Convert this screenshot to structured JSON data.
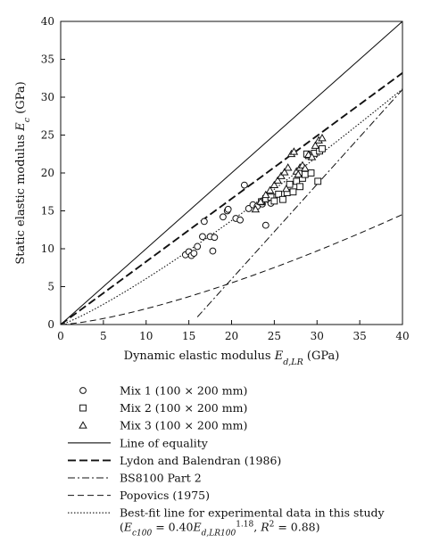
{
  "chart_data": {
    "type": "scatter",
    "title": "",
    "xlabel_text": "Dynamic elastic modulus ",
    "xlabel_var": "E",
    "xlabel_sub": "d,LR",
    "xlabel_unit": " (GPa)",
    "ylabel_text": "Static elastic modulus ",
    "ylabel_var": "E",
    "ylabel_sub": "c",
    "ylabel_unit": " (GPa)",
    "xlim": [
      0,
      40
    ],
    "ylim": [
      0,
      40
    ],
    "xticks": [
      "0",
      "5",
      "10",
      "15",
      "20",
      "25",
      "30",
      "35",
      "40"
    ],
    "yticks": [
      "0",
      "5",
      "10",
      "15",
      "20",
      "25",
      "30",
      "35",
      "40"
    ],
    "grid": false,
    "legend_position": "below",
    "scatter_series": [
      {
        "name": "Mix 1 (100 × 200 mm)",
        "marker": "circle",
        "points": [
          [
            14.6,
            9.2
          ],
          [
            15.0,
            9.6
          ],
          [
            15.3,
            9.1
          ],
          [
            15.6,
            9.4
          ],
          [
            16.0,
            10.3
          ],
          [
            16.6,
            11.6
          ],
          [
            16.8,
            13.6
          ],
          [
            17.5,
            11.6
          ],
          [
            17.8,
            9.7
          ],
          [
            18.0,
            11.5
          ],
          [
            19.0,
            14.2
          ],
          [
            19.5,
            15.0
          ],
          [
            19.6,
            15.2
          ],
          [
            20.5,
            14.0
          ],
          [
            21.0,
            13.8
          ],
          [
            21.5,
            18.4
          ],
          [
            22.0,
            15.3
          ],
          [
            22.5,
            15.8
          ],
          [
            23.0,
            15.6
          ],
          [
            23.6,
            15.9
          ],
          [
            24.0,
            13.1
          ],
          [
            24.3,
            16.5
          ],
          [
            24.6,
            16.0
          ],
          [
            25.0,
            16.8
          ]
        ]
      },
      {
        "name": "Mix 2 (100 × 200 mm)",
        "marker": "square",
        "points": [
          [
            23.5,
            16.2
          ],
          [
            24.0,
            16.6
          ],
          [
            24.6,
            16.8
          ],
          [
            25.0,
            16.3
          ],
          [
            25.5,
            17.2
          ],
          [
            26.0,
            16.5
          ],
          [
            26.5,
            17.4
          ],
          [
            26.8,
            18.5
          ],
          [
            27.2,
            17.5
          ],
          [
            27.6,
            18.9
          ],
          [
            28.0,
            18.2
          ],
          [
            28.3,
            19.3
          ],
          [
            28.6,
            19.8
          ],
          [
            29.0,
            22.3
          ],
          [
            29.3,
            20.0
          ],
          [
            29.7,
            22.6
          ],
          [
            30.1,
            18.9
          ],
          [
            30.3,
            22.9
          ],
          [
            30.6,
            23.2
          ],
          [
            28.8,
            22.5
          ]
        ]
      },
      {
        "name": "Mix 3 (100 × 200 mm)",
        "marker": "triangle",
        "points": [
          [
            22.8,
            15.2
          ],
          [
            23.4,
            16.2
          ],
          [
            24.0,
            17.1
          ],
          [
            24.5,
            17.7
          ],
          [
            25.0,
            18.4
          ],
          [
            25.4,
            19.0
          ],
          [
            25.8,
            19.6
          ],
          [
            26.2,
            20.1
          ],
          [
            26.6,
            20.7
          ],
          [
            27.0,
            22.5
          ],
          [
            27.3,
            22.8
          ],
          [
            27.6,
            20.2
          ],
          [
            28.0,
            20.7
          ],
          [
            28.3,
            21.0
          ],
          [
            28.6,
            20.6
          ],
          [
            29.0,
            22.4
          ],
          [
            29.4,
            22.1
          ],
          [
            29.8,
            23.6
          ],
          [
            30.2,
            24.3
          ],
          [
            30.6,
            24.6
          ],
          [
            26.4,
            17.9
          ],
          [
            27.8,
            19.8
          ]
        ]
      }
    ],
    "line_series": [
      {
        "name": "Line of equality",
        "dash": "solid",
        "xmin": 0,
        "xmax": 40,
        "formula": "y = x"
      },
      {
        "name": "Lydon and Balendran (1986)",
        "dash": "dashed-heavy",
        "xmin": 0,
        "xmax": 40,
        "formula": "y = 0.83x"
      },
      {
        "name": "BS8100 Part 2",
        "dash": "dash-dot",
        "xmin": 16,
        "xmax": 40,
        "formula": "y = 1.25x - 19"
      },
      {
        "name": "Popovics (1975)",
        "dash": "dashed",
        "xmin": 0,
        "xmax": 40,
        "formula": "y = 0.083x^1.4"
      },
      {
        "name": "Best-fit line for experimental data in this study",
        "dash": "dotted",
        "xmin": 0,
        "xmax": 40,
        "formula": "y = 0.40x^1.18"
      }
    ],
    "legend": {
      "items": [
        {
          "symbol": "circle",
          "label": "Mix 1 (100 × 200 mm)"
        },
        {
          "symbol": "square",
          "label": "Mix 2 (100 × 200 mm)"
        },
        {
          "symbol": "triangle",
          "label": "Mix 3 (100 × 200 mm)"
        },
        {
          "symbol": "solid",
          "label": "Line of equality"
        },
        {
          "symbol": "dashed-heavy",
          "label": "Lydon and Balendran (1986)"
        },
        {
          "symbol": "dash-dot",
          "label": "BS8100 Part 2"
        },
        {
          "symbol": "dashed",
          "label": "Popovics (1975)"
        },
        {
          "symbol": "dotted",
          "label": "Best-fit line for experimental data in this study"
        }
      ],
      "equation_text": "(E c100 = 0.40E d,LR100 1.18 , R 2 = 0.88)"
    }
  }
}
